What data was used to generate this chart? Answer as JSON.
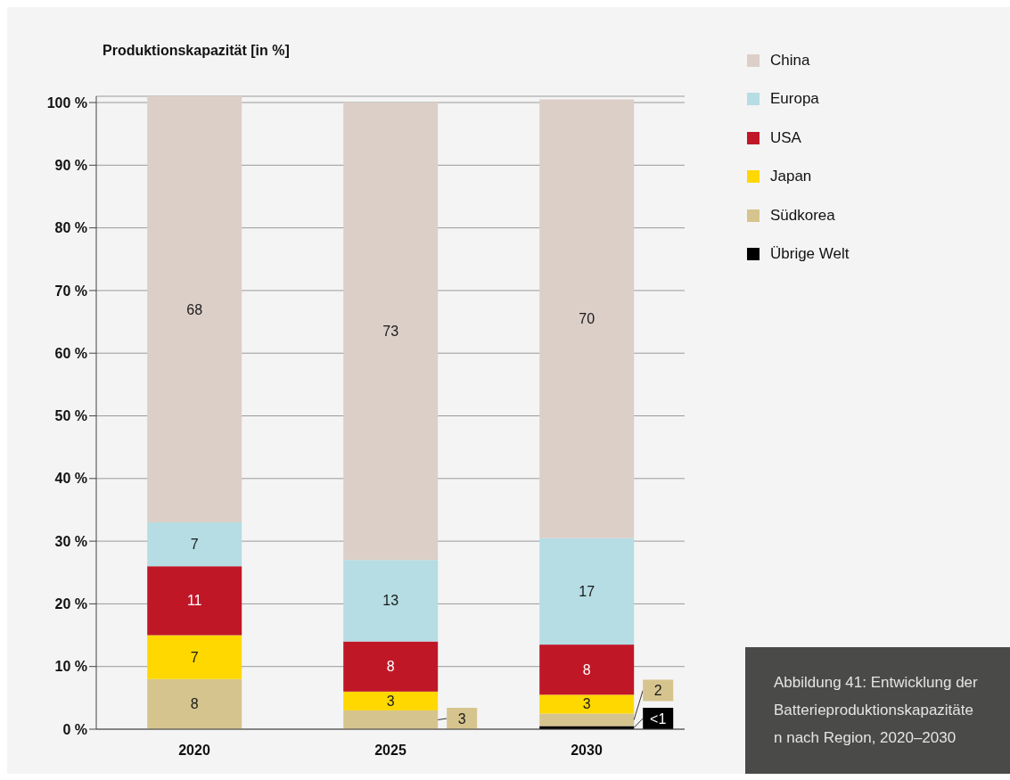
{
  "chart_data": {
    "type": "bar",
    "stacked": true,
    "ylabel": "Produktionskapazität [in %]",
    "categories": [
      "2020",
      "2025",
      "2030"
    ],
    "series": [
      {
        "name": "Übrige Welt",
        "color": "#000000",
        "values": [
          null,
          null,
          0.5
        ],
        "value_labels": [
          null,
          null,
          "<1"
        ]
      },
      {
        "name": "Südkorea",
        "color": "#d6c48e",
        "values": [
          8,
          3,
          2
        ],
        "value_labels": [
          "8",
          "3",
          "2"
        ]
      },
      {
        "name": "Japan",
        "color": "#ffd800",
        "values": [
          7,
          3,
          3
        ],
        "value_labels": [
          "7",
          "3",
          "3"
        ]
      },
      {
        "name": "USA",
        "color": "#c01727",
        "values": [
          11,
          8,
          8
        ],
        "value_labels": [
          "11",
          "8",
          "8"
        ]
      },
      {
        "name": "Europa",
        "color": "#b5dde3",
        "values": [
          7,
          13,
          17
        ],
        "value_labels": [
          "7",
          "13",
          "17"
        ]
      },
      {
        "name": "China",
        "color": "#dccfc8",
        "values": [
          68,
          73,
          70
        ],
        "value_labels": [
          "68",
          "73",
          "70"
        ]
      }
    ],
    "ylim": [
      0,
      101
    ],
    "yticks": [
      {
        "value": 0,
        "label": "0 %"
      },
      {
        "value": 10,
        "label": "10 %"
      },
      {
        "value": 20,
        "label": "20 %"
      },
      {
        "value": 30,
        "label": "30 %"
      },
      {
        "value": 40,
        "label": "40 %"
      },
      {
        "value": 50,
        "label": "50 %"
      },
      {
        "value": 60,
        "label": "60 %"
      },
      {
        "value": 70,
        "label": "70 %"
      },
      {
        "value": 80,
        "label": "80 %"
      },
      {
        "value": 90,
        "label": "90 %"
      },
      {
        "value": 100,
        "label": "100 %"
      }
    ],
    "grid": "y",
    "legend": "top right",
    "annotations": [
      "Abbildung 41: Entwicklung der Batterieproduktionskapazitäten nach Region, 2020–2030"
    ]
  }
}
